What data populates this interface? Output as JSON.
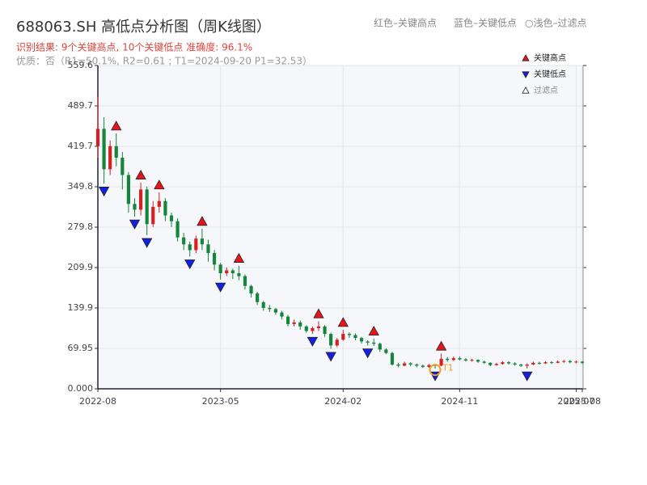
{
  "chart_data": {
    "type": "candlestick",
    "title": "688063.SH 高低点分析图（周K线图）",
    "subtitle": "识别结果: 9个关键高点, 10个关键低点  准确度: 96.1%",
    "note": "优质：否（R1=50.1%, R2=0.61 ; T1=2024-09-20 P1=32.53）",
    "header_labels": [
      "红色–关键高点",
      "蓝色–关键低点",
      "○浅色–过滤点"
    ],
    "categories": [
      "2022-08",
      null,
      null,
      null,
      null,
      null,
      null,
      null,
      null,
      null,
      null,
      null,
      null,
      null,
      null,
      null,
      null,
      null,
      null,
      null,
      "2023-05",
      null,
      null,
      null,
      null,
      null,
      null,
      null,
      null,
      null,
      null,
      null,
      null,
      null,
      null,
      null,
      null,
      null,
      null,
      null,
      "2024-02",
      null,
      null,
      null,
      null,
      null,
      null,
      null,
      null,
      null,
      null,
      null,
      null,
      null,
      null,
      null,
      null,
      null,
      null,
      "2024-11",
      null,
      null,
      null,
      null,
      null,
      null,
      null,
      null,
      null,
      null,
      null,
      null,
      null,
      null,
      null,
      null,
      null,
      null,
      "2025-07",
      "2025-08"
    ],
    "open": [
      420,
      450,
      380,
      420,
      400,
      370,
      320,
      310,
      345,
      285,
      315,
      325,
      300,
      290,
      262,
      250,
      240,
      260,
      250,
      235,
      215,
      200,
      205,
      200,
      195,
      178,
      165,
      150,
      140,
      138,
      132,
      125,
      112,
      115,
      108,
      100,
      105,
      108,
      95,
      75,
      85,
      95,
      93,
      88,
      82,
      80,
      78,
      68,
      62,
      42,
      40,
      44,
      42,
      40,
      38,
      41,
      40,
      52,
      50,
      53,
      51,
      49,
      50,
      47,
      45,
      41,
      43,
      46,
      44,
      42,
      40,
      42,
      45,
      44,
      46,
      45,
      47,
      48,
      46,
      47
    ],
    "high": [
      505,
      470,
      430,
      442,
      410,
      375,
      330,
      357,
      350,
      325,
      340,
      330,
      305,
      295,
      270,
      255,
      265,
      277,
      258,
      240,
      218,
      210,
      208,
      213,
      198,
      180,
      168,
      152,
      145,
      140,
      135,
      128,
      120,
      118,
      110,
      108,
      117,
      110,
      97,
      88,
      102,
      98,
      96,
      90,
      84,
      87,
      80,
      70,
      64,
      45,
      47,
      46,
      44,
      42,
      43,
      43,
      61,
      55,
      56,
      56,
      53,
      52,
      51,
      49,
      46,
      45,
      48,
      48,
      46,
      43,
      44,
      47,
      47,
      48,
      48,
      49,
      50,
      50,
      49,
      48
    ],
    "low": [
      400,
      355,
      370,
      385,
      345,
      305,
      298,
      300,
      266,
      280,
      305,
      290,
      280,
      255,
      240,
      229,
      235,
      240,
      220,
      205,
      189,
      195,
      190,
      188,
      172,
      158,
      145,
      135,
      133,
      128,
      120,
      108,
      108,
      102,
      97,
      95,
      100,
      90,
      69,
      72,
      83,
      88,
      84,
      78,
      75,
      74,
      64,
      60,
      40,
      37,
      39,
      39,
      37,
      36,
      36,
      35,
      39,
      47,
      48,
      49,
      47,
      47,
      45,
      43,
      39,
      40,
      42,
      42,
      40,
      38,
      35,
      41,
      42,
      43,
      43,
      44,
      45,
      44,
      44,
      43
    ],
    "close": [
      450,
      380,
      420,
      400,
      370,
      320,
      310,
      345,
      285,
      315,
      325,
      300,
      290,
      262,
      250,
      240,
      260,
      250,
      235,
      215,
      200,
      205,
      200,
      195,
      178,
      165,
      150,
      140,
      138,
      132,
      125,
      112,
      115,
      108,
      100,
      105,
      108,
      95,
      75,
      85,
      95,
      93,
      88,
      82,
      80,
      78,
      68,
      62,
      42,
      40,
      44,
      42,
      40,
      38,
      41,
      40,
      52,
      50,
      53,
      51,
      49,
      50,
      47,
      45,
      41,
      43,
      46,
      44,
      42,
      40,
      42,
      45,
      44,
      46,
      45,
      47,
      48,
      46,
      47,
      45
    ],
    "up_color": "#d42020",
    "down_color": "#14853a",
    "markers": [
      {
        "name": "关键高点",
        "color": "#e8141c",
        "direction": "up",
        "values": [
          null,
          null,
          null,
          442,
          null,
          null,
          null,
          357,
          null,
          null,
          340,
          null,
          null,
          null,
          null,
          null,
          null,
          277,
          null,
          null,
          null,
          null,
          null,
          213,
          null,
          null,
          null,
          null,
          null,
          null,
          null,
          null,
          null,
          null,
          null,
          null,
          117,
          null,
          null,
          null,
          102,
          null,
          null,
          null,
          null,
          87,
          null,
          null,
          null,
          null,
          null,
          null,
          null,
          null,
          null,
          null,
          61,
          null,
          null,
          null,
          null,
          null,
          null,
          null,
          null,
          null,
          null,
          null,
          null,
          null,
          null,
          null,
          null,
          null,
          null,
          null,
          null,
          null,
          null,
          null
        ]
      },
      {
        "name": "关键低点",
        "color": "#1420e0",
        "direction": "down",
        "values": [
          null,
          355,
          null,
          null,
          null,
          null,
          298,
          null,
          266,
          null,
          null,
          null,
          null,
          null,
          null,
          229,
          null,
          null,
          null,
          null,
          189,
          null,
          null,
          null,
          null,
          null,
          null,
          null,
          null,
          null,
          null,
          null,
          null,
          null,
          null,
          95,
          null,
          null,
          69,
          null,
          null,
          null,
          null,
          null,
          75,
          null,
          null,
          null,
          null,
          null,
          null,
          null,
          null,
          null,
          null,
          35,
          null,
          null,
          null,
          null,
          null,
          null,
          null,
          null,
          null,
          null,
          null,
          null,
          null,
          null,
          35,
          null,
          null,
          null,
          null,
          null,
          null,
          null,
          null,
          null
        ]
      },
      {
        "name": "过滤点",
        "color": "#ffffff",
        "direction": "up",
        "values": []
      }
    ],
    "annotation": {
      "text": "T1",
      "x": 55,
      "y": 32.53,
      "color": "#f0a020"
    },
    "ylim": [
      0,
      559.6
    ],
    "yticks": [
      {
        "value": 0,
        "label": "0.000"
      },
      69.95,
      139.9,
      {
        "value": 209.85,
        "label": "209.9"
      },
      279.8,
      {
        "value": 349.75,
        "label": "349.8"
      },
      419.7,
      {
        "value": 489.65,
        "label": "489.7"
      },
      559.6
    ],
    "grid": true
  }
}
